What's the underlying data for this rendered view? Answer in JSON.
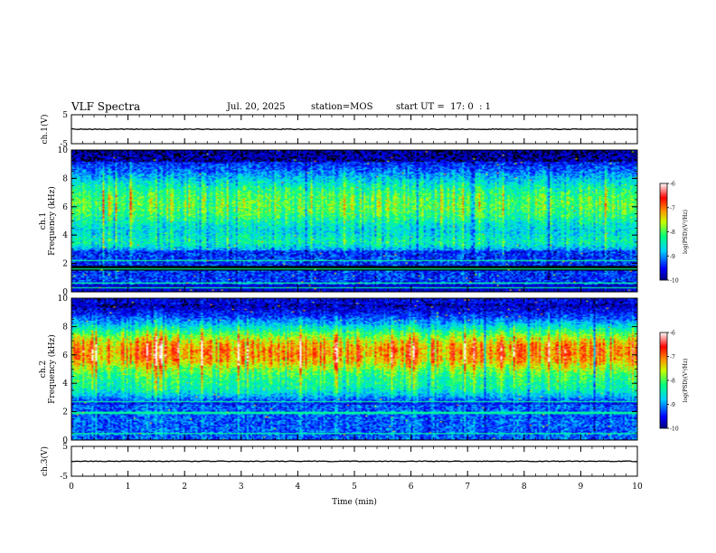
{
  "header": {
    "title": "VLF Spectra",
    "date": "Jul. 20, 2025",
    "station": "station=MOS",
    "start": "start UT =  17: 0  : 1"
  },
  "chart_data": [
    {
      "type": "line",
      "name": "ch1-waveform",
      "ylabel": "ch.1(V)",
      "ylim": [
        -5,
        5
      ],
      "yticks": [
        "5",
        "-5"
      ],
      "xlim": [
        0,
        10
      ],
      "value": 0
    },
    {
      "type": "heatmap",
      "name": "ch1-spectrogram",
      "ylabel": "ch.1\nFrequency (kHz)",
      "ylim": [
        0,
        10
      ],
      "yticks": [
        "0",
        "2",
        "4",
        "6",
        "8",
        "10"
      ],
      "xlim": [
        0,
        10
      ],
      "colorbar": {
        "label": "log(PSD)(V²/Hz)",
        "range": [
          -10,
          -6
        ],
        "ticks": [
          "-6",
          "-7",
          "-8",
          "-9",
          "-10"
        ]
      }
    },
    {
      "type": "heatmap",
      "name": "ch2-spectrogram",
      "ylabel": "ch.2\nFrequency (kHz)",
      "ylim": [
        0,
        10
      ],
      "yticks": [
        "0",
        "2",
        "4",
        "6",
        "8",
        "10"
      ],
      "xlim": [
        0,
        10
      ],
      "colorbar": {
        "label": "log(PSD)(V²/Hz)",
        "range": [
          -10,
          -6
        ],
        "ticks": [
          "-6",
          "-7",
          "-8",
          "-9",
          "-10"
        ]
      }
    },
    {
      "type": "line",
      "name": "ch3-waveform",
      "ylabel": "ch.3(V)",
      "ylim": [
        -5,
        5
      ],
      "yticks": [
        "5",
        "-5"
      ],
      "xlim": [
        0,
        10
      ],
      "value": 0
    }
  ],
  "xaxis": {
    "label": "Time (min)",
    "ticks": [
      "0",
      "1",
      "2",
      "3",
      "4",
      "5",
      "6",
      "7",
      "8",
      "9",
      "10"
    ]
  }
}
